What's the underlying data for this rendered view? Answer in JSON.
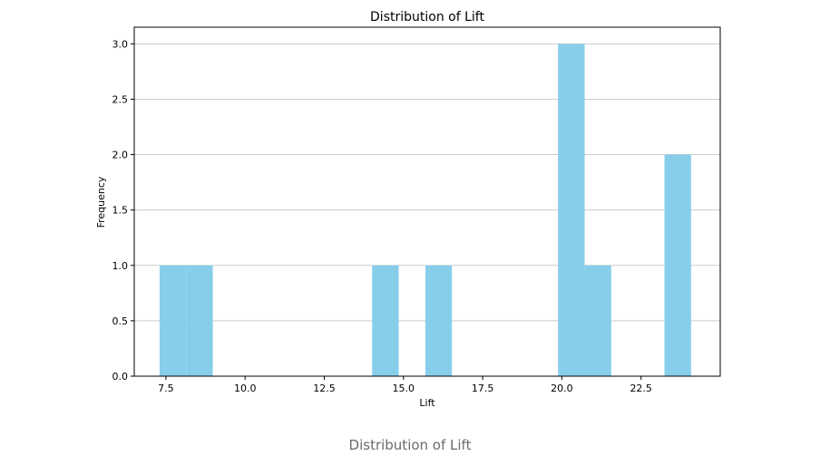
{
  "chart_data": {
    "type": "bar",
    "subtype": "histogram",
    "title": "Distribution of Lift",
    "xlabel": "Lift",
    "ylabel": "Frequency",
    "xlim": [
      6.5,
      25.0
    ],
    "ylim": [
      0.0,
      3.15
    ],
    "xticks": [
      7.5,
      10.0,
      12.5,
      15.0,
      17.5,
      20.0,
      22.5
    ],
    "xtick_labels": [
      "7.5",
      "10.0",
      "12.5",
      "15.0",
      "17.5",
      "20.0",
      "22.5"
    ],
    "yticks": [
      0.0,
      0.5,
      1.0,
      1.5,
      2.0,
      2.5,
      3.0
    ],
    "ytick_labels": [
      "0.0",
      "0.5",
      "1.0",
      "1.5",
      "2.0",
      "2.5",
      "3.0"
    ],
    "grid": "horizontal",
    "bar_color": "#87CEEB",
    "bins": [
      {
        "x0": 7.3,
        "x1": 8.14,
        "count": 1
      },
      {
        "x0": 8.14,
        "x1": 8.98,
        "count": 1
      },
      {
        "x0": 14.01,
        "x1": 14.85,
        "count": 1
      },
      {
        "x0": 15.69,
        "x1": 16.53,
        "count": 1
      },
      {
        "x0": 19.88,
        "x1": 20.72,
        "count": 3
      },
      {
        "x0": 20.72,
        "x1": 21.56,
        "count": 1
      },
      {
        "x0": 23.24,
        "x1": 24.08,
        "count": 2
      }
    ]
  },
  "caption": "Distribution of Lift"
}
